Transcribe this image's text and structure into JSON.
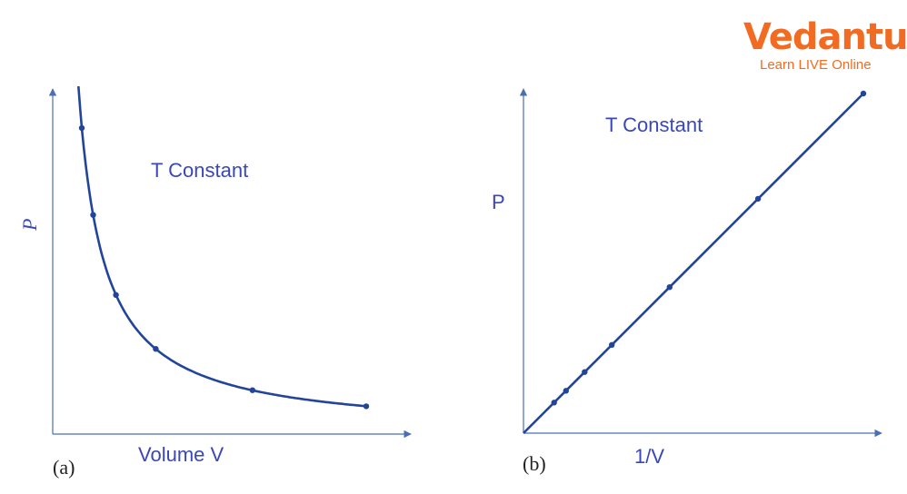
{
  "logo": {
    "name": "Vedantu",
    "tagline": "Learn LIVE Online",
    "color": "#f26b22"
  },
  "colors": {
    "curve": "#22449a",
    "axis": "#4a6fb5",
    "label": "#3a47b8"
  },
  "chart_data": [
    {
      "type": "line",
      "panel_label": "(a)",
      "annotation": "T Constant",
      "xlabel": "Volume V",
      "ylabel": "P",
      "grid": false,
      "legend": "none",
      "curve": "hyperbola",
      "x": [
        1.0,
        1.4,
        2.2,
        3.6,
        7.0,
        11.0
      ],
      "y": [
        8.8,
        6.3,
        4.0,
        2.45,
        1.26,
        0.8
      ]
    },
    {
      "type": "line",
      "panel_label": "(b)",
      "annotation": "T Constant",
      "xlabel": "1/V",
      "ylabel": "P",
      "grid": false,
      "legend": "none",
      "curve": "straight-line-through-origin",
      "x": [
        0.09,
        0.125,
        0.18,
        0.26,
        0.43,
        0.69,
        1.0
      ],
      "y": [
        0.09,
        0.125,
        0.18,
        0.26,
        0.43,
        0.69,
        1.0
      ]
    }
  ]
}
